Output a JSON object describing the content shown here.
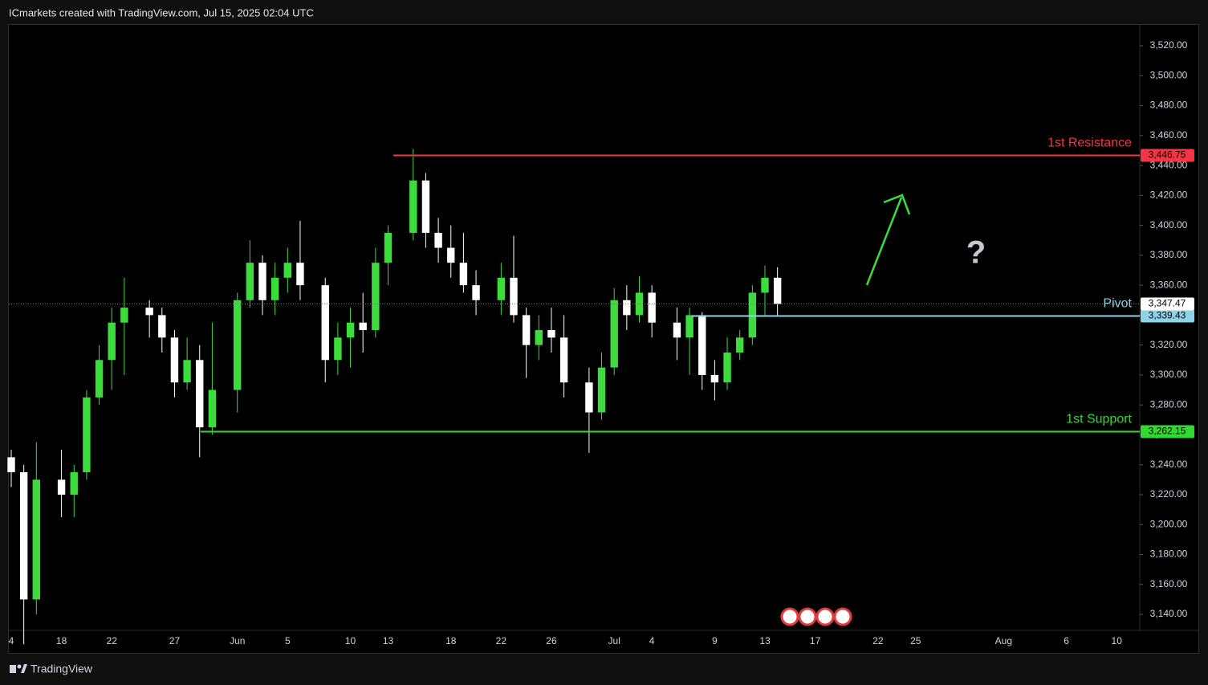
{
  "chart_data": {
    "type": "candlestick",
    "title": "ICmarkets created with TradingView.com, Jul 15, 2025 02:04 UTC",
    "watermark": "TradingView",
    "annotation": "?",
    "up_color": "#3ddc3d",
    "down_color": "#ffffff",
    "categories": [
      "4",
      null,
      null,
      null,
      "18",
      null,
      null,
      null,
      "22",
      null,
      null,
      null,
      null,
      "27",
      null,
      null,
      null,
      null,
      "Jun",
      null,
      null,
      null,
      "5",
      null,
      null,
      null,
      null,
      "10",
      null,
      null,
      "13",
      null,
      null,
      null,
      null,
      "18",
      null,
      null,
      null,
      "22",
      null,
      null,
      null,
      "26",
      null,
      null,
      null,
      null,
      "Jul",
      null,
      null,
      "4",
      null,
      null,
      null,
      null,
      "9",
      null,
      null,
      null,
      "13",
      null,
      null,
      null,
      "17",
      null,
      null,
      null,
      null,
      "22",
      null,
      null,
      "25",
      null,
      null,
      null,
      null,
      null,
      null,
      "Aug",
      null,
      null,
      null,
      null,
      "6",
      null,
      null,
      null,
      "10"
    ],
    "open": [
      3245,
      3235,
      3150,
      null,
      3230,
      3220,
      3235,
      3285,
      3310,
      3335,
      null,
      3345,
      3340,
      3325,
      3295,
      3310,
      3265,
      null,
      3290,
      3350,
      3375,
      3350,
      3365,
      3375,
      null,
      3360,
      3310,
      3325,
      3335,
      3330,
      3375,
      null,
      3395,
      3430,
      3395,
      3385,
      3375,
      3360,
      null,
      3350,
      3365,
      3340,
      3320,
      3330,
      3325,
      null,
      3295,
      3275,
      3305,
      3350,
      3340,
      3355,
      null,
      3335,
      3325,
      3340,
      3300,
      3295,
      3315,
      3325,
      3355,
      3365,
      null,
      null,
      null,
      null,
      null,
      null,
      null,
      null,
      null,
      null,
      null,
      null,
      null,
      null,
      null,
      null,
      null,
      null,
      null,
      null,
      null,
      null,
      null,
      null,
      null,
      null,
      null
    ],
    "high": [
      3250,
      3240,
      3255,
      null,
      3250,
      3240,
      3290,
      3320,
      3345,
      3365,
      null,
      3350,
      3345,
      3330,
      3325,
      3320,
      3335,
      null,
      3355,
      3390,
      3380,
      3375,
      3385,
      3403,
      null,
      3365,
      3335,
      3345,
      3355,
      3385,
      3400,
      null,
      3451,
      3435,
      3405,
      3400,
      3395,
      3370,
      null,
      3375,
      3393,
      3345,
      3340,
      3345,
      3340,
      null,
      3305,
      3315,
      3358,
      3360,
      3366,
      3360,
      null,
      3345,
      3345,
      3342,
      3310,
      3325,
      3330,
      3360,
      3373,
      3372,
      null,
      null,
      null,
      null,
      null,
      null,
      null,
      null,
      null,
      null,
      null,
      null,
      null,
      null,
      null,
      null,
      null,
      null,
      null,
      null,
      null,
      null,
      null,
      null,
      null,
      null,
      null
    ],
    "low": [
      3225,
      3120,
      3140,
      null,
      3205,
      3205,
      3230,
      3280,
      3290,
      3300,
      null,
      3325,
      3315,
      3285,
      3290,
      3245,
      3260,
      null,
      3275,
      3345,
      3340,
      3340,
      3355,
      3350,
      null,
      3295,
      3300,
      3305,
      3315,
      3325,
      3360,
      null,
      3390,
      3385,
      3375,
      3365,
      3355,
      3340,
      null,
      3340,
      3335,
      3298,
      3310,
      3315,
      3285,
      null,
      3248,
      3270,
      3300,
      3330,
      3335,
      3325,
      null,
      3310,
      3300,
      3290,
      3283,
      3290,
      3310,
      3320,
      3340,
      3340,
      null,
      null,
      null,
      null,
      null,
      null,
      null,
      null,
      null,
      null,
      null,
      null,
      null,
      null,
      null,
      null,
      null,
      null,
      null,
      null,
      null,
      null,
      null,
      null,
      null,
      null,
      null
    ],
    "close": [
      3235,
      3150,
      3230,
      null,
      3220,
      3235,
      3285,
      3310,
      3335,
      3345,
      null,
      3340,
      3325,
      3295,
      3310,
      3265,
      3290,
      null,
      3350,
      3375,
      3350,
      3365,
      3375,
      3360,
      null,
      3310,
      3325,
      3335,
      3330,
      3375,
      3395,
      null,
      3430,
      3395,
      3385,
      3375,
      3360,
      3350,
      null,
      3365,
      3340,
      3320,
      3330,
      3325,
      3295,
      null,
      3275,
      3305,
      3350,
      3340,
      3355,
      3335,
      null,
      3325,
      3340,
      3300,
      3295,
      3315,
      3325,
      3355,
      3365,
      3347.47,
      null,
      null,
      null,
      null,
      null,
      null,
      null,
      null,
      null,
      null,
      null,
      null,
      null,
      null,
      null,
      null,
      null,
      null,
      null,
      null,
      null,
      null,
      null,
      null,
      null,
      null,
      null
    ],
    "last_price": {
      "value": 3347.47,
      "label": "3,347.47"
    },
    "levels": [
      {
        "name": "1st Resistance",
        "value": 3446.75,
        "value_label": "3,446.75",
        "color": "#f23645"
      },
      {
        "name": "Pivot",
        "value": 3339.43,
        "value_label": "3,339.43",
        "color": "#8fd3e8"
      },
      {
        "name": "1st Support",
        "value": 3262.15,
        "value_label": "3,262.15",
        "color": "#33d933"
      }
    ],
    "ylim": [
      3129.3,
      3534.5
    ],
    "yticks": [
      {
        "value": 3140,
        "label": "3,140.00"
      },
      {
        "value": 3160,
        "label": "3,160.00"
      },
      {
        "value": 3180,
        "label": "3,180.00"
      },
      {
        "value": 3200,
        "label": "3,200.00"
      },
      {
        "value": 3220,
        "label": "3,220.00"
      },
      {
        "value": 3240,
        "label": "3,240.00"
      },
      {
        "value": 3260,
        "label": "3,260.00"
      },
      {
        "value": 3280,
        "label": "3,280.00"
      },
      {
        "value": 3300,
        "label": "3,300.00"
      },
      {
        "value": 3320,
        "label": "3,320.00"
      },
      {
        "value": 3340,
        "label": "3,340.00"
      },
      {
        "value": 3360,
        "label": "3,360.00"
      },
      {
        "value": 3380,
        "label": "3,380.00"
      },
      {
        "value": 3400,
        "label": "3,400.00"
      },
      {
        "value": 3420,
        "label": "3,420.00"
      },
      {
        "value": 3440,
        "label": "3,440.00"
      },
      {
        "value": 3460,
        "label": "3,460.00"
      },
      {
        "value": 3480,
        "label": "3,480.00"
      },
      {
        "value": 3500,
        "label": "3,500.00"
      },
      {
        "value": 3520,
        "label": "3,520.00"
      }
    ]
  }
}
